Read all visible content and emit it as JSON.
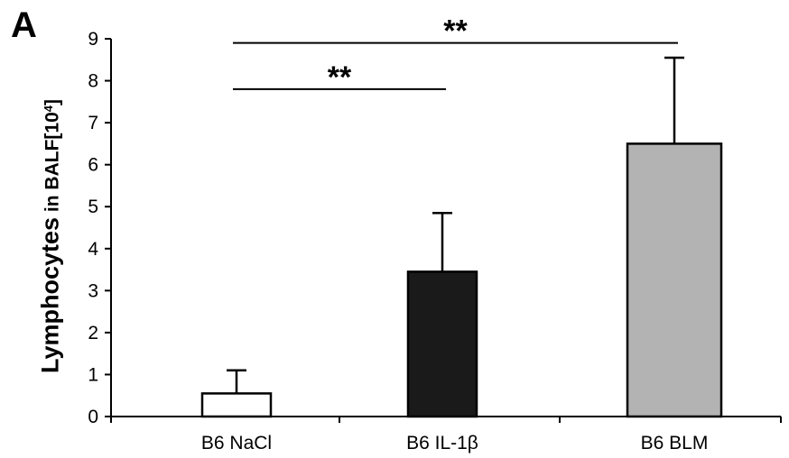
{
  "panel_label": "A",
  "chart_data": {
    "type": "bar",
    "title": "",
    "xlabel": "",
    "ylabel": {
      "part1": "Lymphocytes",
      "part2": " in BALF[10",
      "exponent": "4",
      "part3": "]"
    },
    "ylim": [
      0,
      9
    ],
    "yticks": [
      "0",
      "1",
      "2",
      "3",
      "4",
      "5",
      "6",
      "7",
      "8",
      "9"
    ],
    "grid": false,
    "categories": [
      "B6 NaCl",
      "B6 IL-1β",
      "B6 BLM"
    ],
    "values": [
      0.55,
      3.45,
      6.5
    ],
    "error_upper": [
      1.1,
      4.85,
      8.55
    ],
    "bar_colors": [
      "#ffffff",
      "#1a1a1a",
      "#b3b3b3"
    ],
    "significance": [
      {
        "from": "B6 NaCl",
        "to": "B6 IL-1β",
        "y": 7.8,
        "label": "**"
      },
      {
        "from": "B6 NaCl",
        "to": "B6 BLM",
        "y": 8.9,
        "label": "**"
      }
    ]
  }
}
